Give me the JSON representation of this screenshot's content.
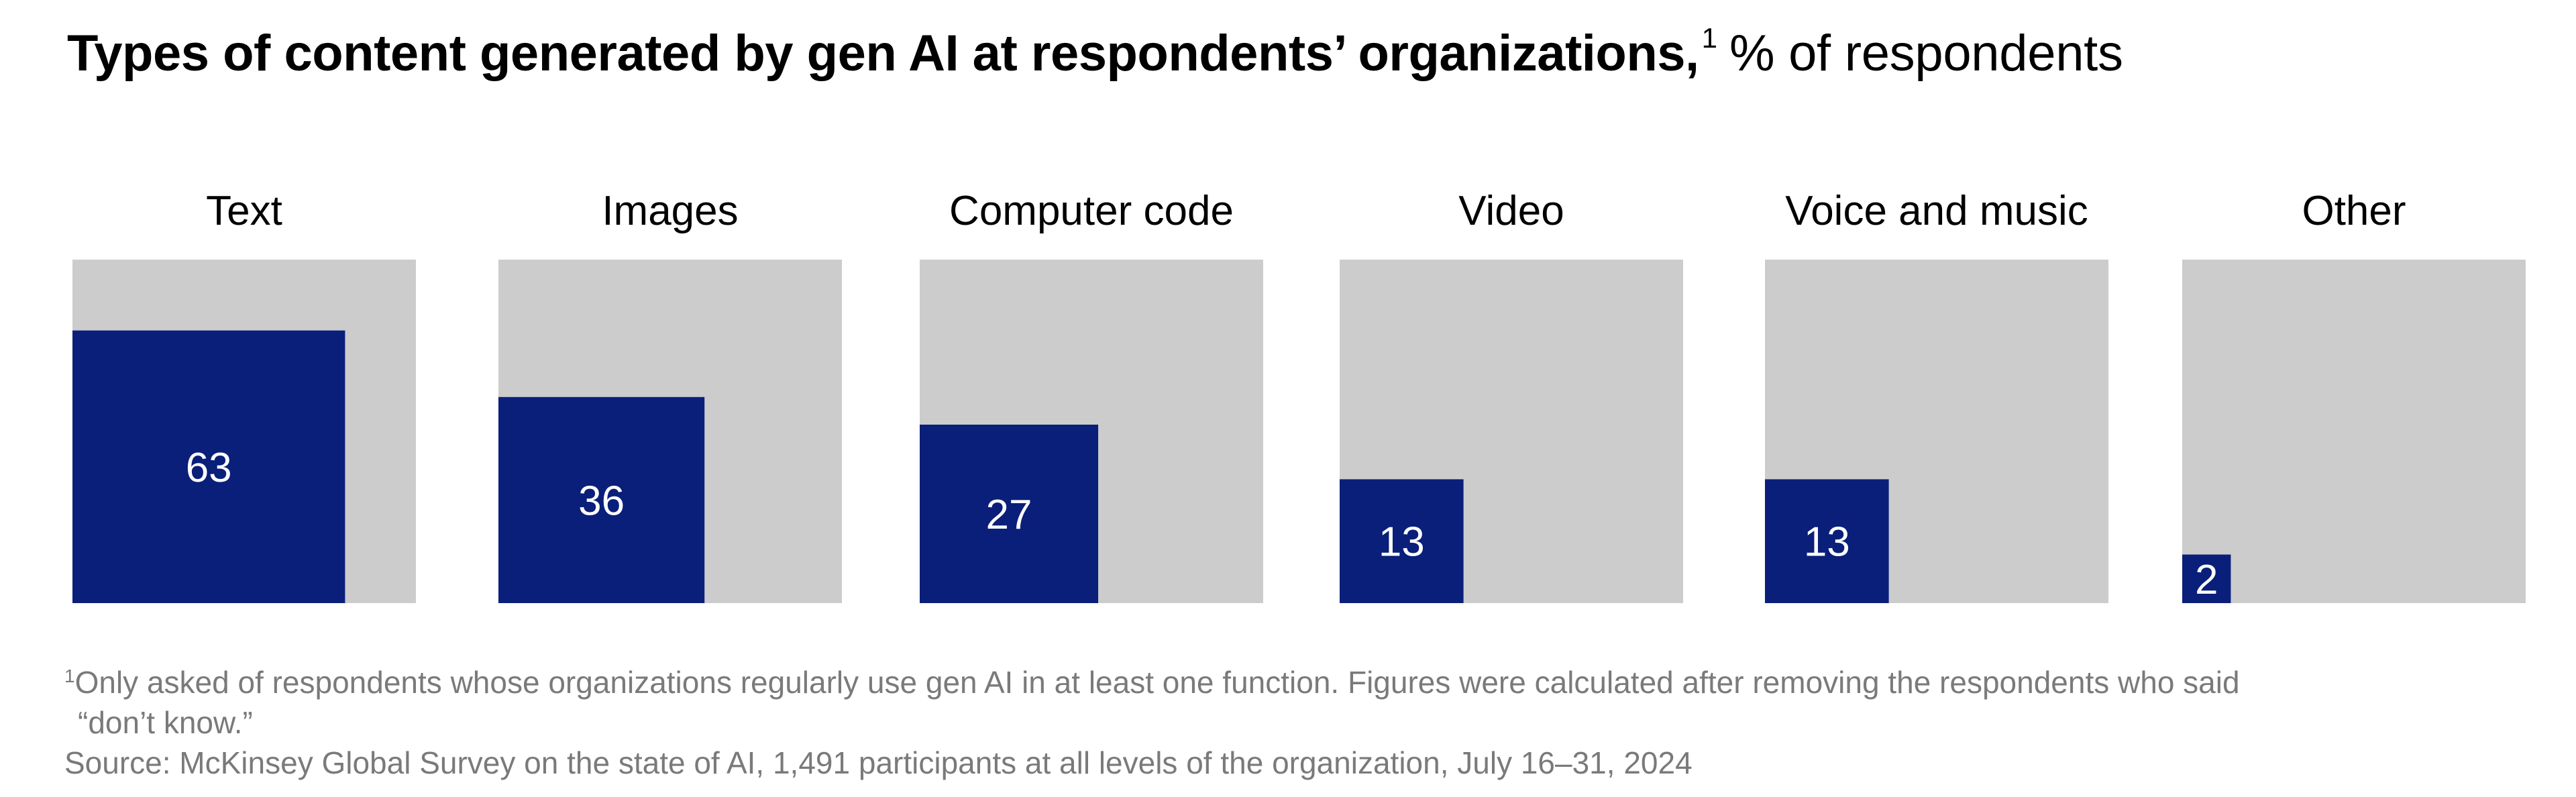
{
  "title": {
    "main": "Types of content generated by gen AI at respondents’ organizations,",
    "footnote_marker": "1",
    "unit": "% of respondents"
  },
  "colors": {
    "background_square": "#cccccc",
    "value_square": "#0a1f7a",
    "value_text": "#ffffff",
    "footnote_text": "#7a7a7a"
  },
  "chart_data": {
    "type": "area",
    "title": "Types of content generated by gen AI at respondents’ organizations,",
    "unit": "% of respondents",
    "categories": [
      "Text",
      "Images",
      "Computer code",
      "Video",
      "Voice and music",
      "Other"
    ],
    "values": [
      63,
      36,
      27,
      13,
      13,
      2
    ],
    "max": 100,
    "grid": false,
    "legend": "none"
  },
  "footnotes": {
    "marker": "1",
    "note_line1": "Only asked of respondents whose organizations regularly use gen AI in at least one function. Figures were calculated after removing the respondents who said",
    "note_line2": "“don’t know.”",
    "source": "Source: McKinsey Global Survey on the state of AI, 1,491 participants at all levels of the organization, July 16–31, 2024"
  }
}
